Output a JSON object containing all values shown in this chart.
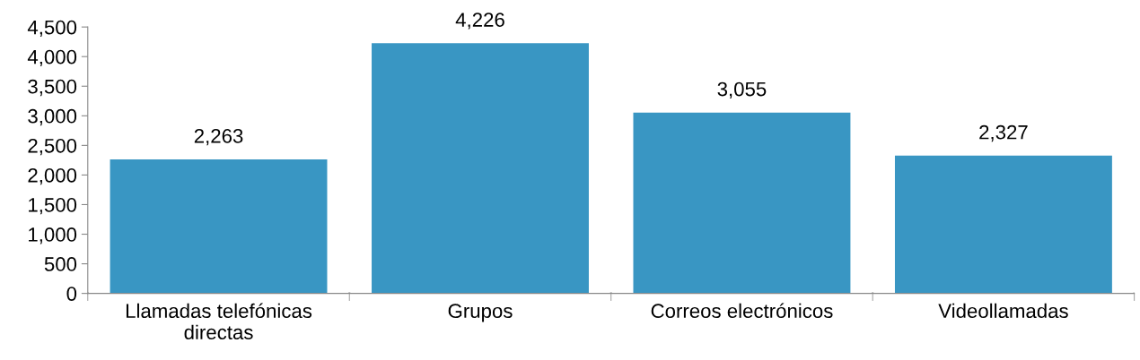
{
  "chart_data": {
    "type": "bar",
    "categories": [
      "Llamadas telefónicas\ndirectas",
      "Grupos",
      "Correos electrónicos",
      "Videollamadas"
    ],
    "values": [
      2263,
      4226,
      3055,
      2327
    ],
    "value_labels": [
      "2,263",
      "4,226",
      "3,055",
      "2,327"
    ],
    "color": "#3996c3",
    "ylim": [
      0,
      4500
    ],
    "yticks": [
      0,
      500,
      {
        "value": 1000,
        "label": "1,000"
      },
      {
        "value": 1500,
        "label": "1,500"
      },
      {
        "value": 2000,
        "label": "2,000"
      },
      {
        "value": 2500,
        "label": "2,500"
      },
      {
        "value": 3000,
        "label": "3,000"
      },
      {
        "value": 3500,
        "label": "3,500"
      },
      {
        "value": 4000,
        "label": "4,000"
      },
      {
        "value": 4500,
        "label": "4,500"
      }
    ],
    "grid": false,
    "legend": false
  }
}
